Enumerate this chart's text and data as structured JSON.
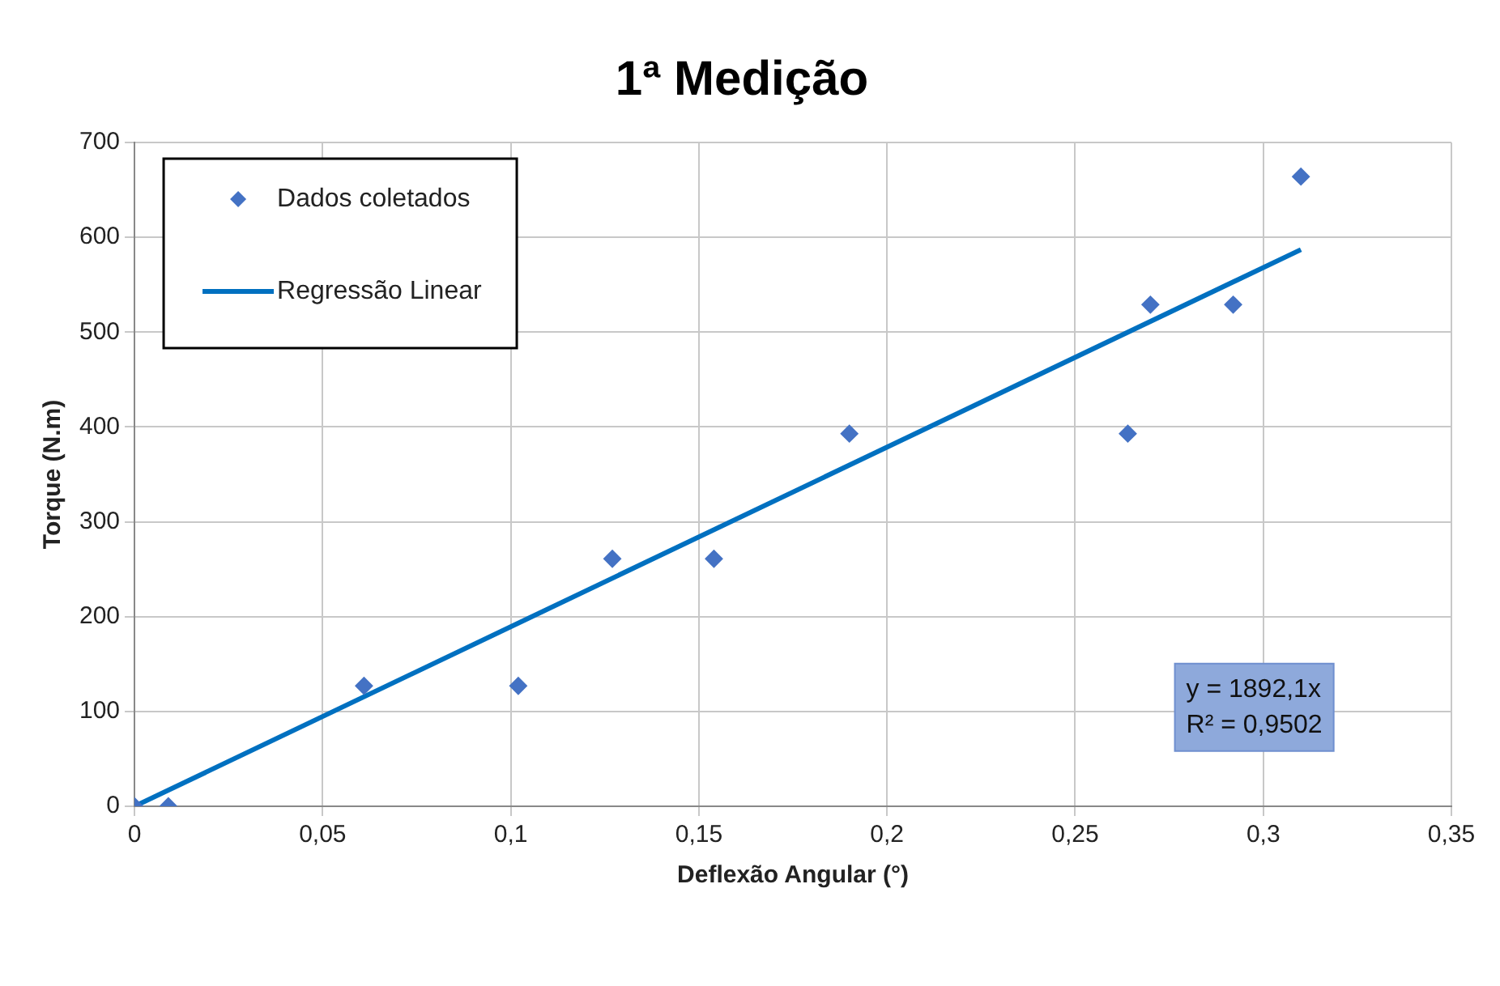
{
  "chart_data": {
    "type": "scatter",
    "title": "1ª Medição",
    "xlabel": "Deflexão Angular (°)",
    "ylabel": "Torque (N.m)",
    "xlim": [
      0,
      0.35
    ],
    "xticks": [
      0,
      {
        "value": 0.05,
        "label": "0,05"
      },
      {
        "value": 0.1,
        "label": "0,1"
      },
      {
        "value": 0.15,
        "label": "0,15"
      },
      {
        "value": 0.2,
        "label": "0,2"
      },
      {
        "value": 0.25,
        "label": "0,25"
      },
      {
        "value": 0.3,
        "label": "0,3"
      },
      {
        "value": 0.35,
        "label": "0,35"
      }
    ],
    "ylim": [
      0,
      700
    ],
    "yticks": [
      0,
      100,
      200,
      300,
      400,
      500,
      600,
      700
    ],
    "grid": true,
    "legend": "top left",
    "series": [
      {
        "name": "Dados coletados",
        "type": "scatter",
        "marker": "diamond",
        "color": "#4472c4",
        "x": [
          0,
          0.009,
          0.061,
          0.102,
          0.127,
          0.154,
          0.19,
          0.264,
          0.27,
          0.292,
          0.31
        ],
        "values": [
          0,
          0,
          127,
          127,
          261,
          261,
          393,
          393,
          529,
          529,
          664
        ]
      },
      {
        "name": "Regressão Linear",
        "type": "line",
        "marker": "none",
        "line_style": "solid",
        "color": "#0070c0",
        "x": [
          0,
          0.31
        ],
        "values": [
          0,
          587
        ]
      }
    ],
    "annotations": [
      "y = 1892,1x",
      "R² = 0,9502"
    ]
  }
}
